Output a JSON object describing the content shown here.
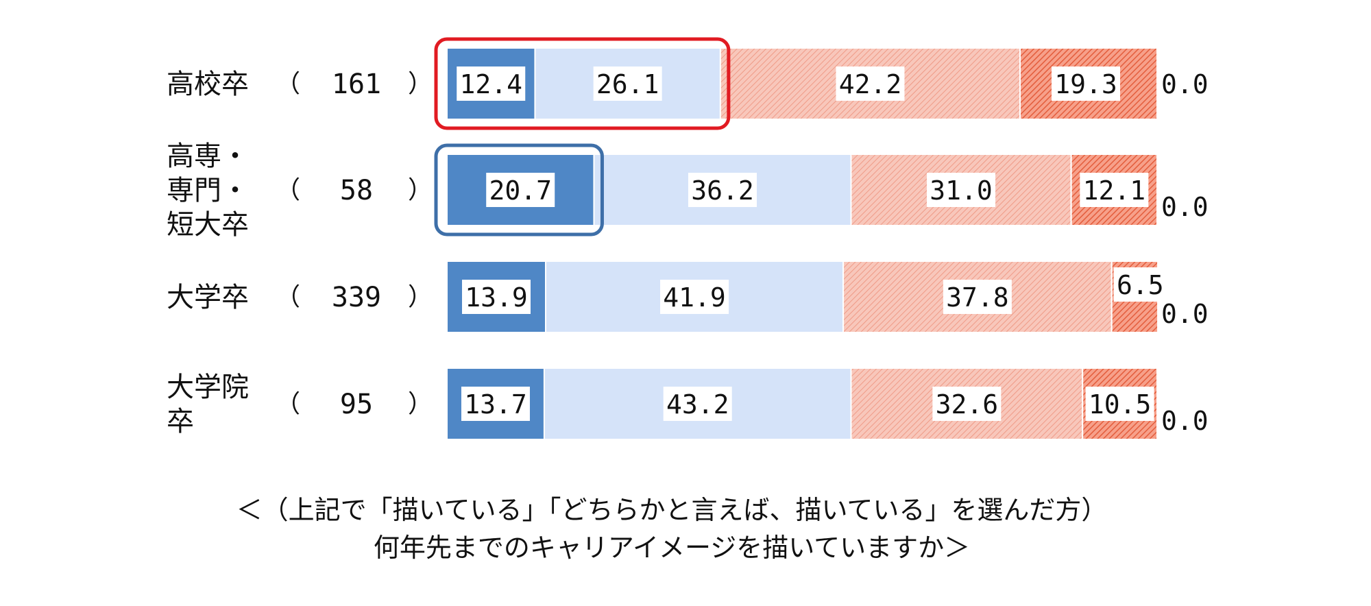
{
  "colors": {
    "strongly_draw": "#4f87c6",
    "somewhat_draw": "#d5e3f9",
    "somewhat_not": "#f5b4a5",
    "not_draw": "#ef7d5f",
    "no_answer": "#ffffff",
    "highlight_red": "#e11b22",
    "highlight_blue": "#3e6fa8",
    "value_label_bg": "#ffffff"
  },
  "chart_data": {
    "type": "bar",
    "orientation": "horizontal",
    "stacked": true,
    "xlim": [
      0,
      100
    ],
    "categories": [
      {
        "label_lines": [
          "高校卒"
        ],
        "count": "161"
      },
      {
        "label_lines": [
          "高専・",
          "専門・",
          "短大卒"
        ],
        "count": "58"
      },
      {
        "label_lines": [
          "大学卒"
        ],
        "count": "339"
      },
      {
        "label_lines": [
          "大学院",
          "卒"
        ],
        "count": "95"
      }
    ],
    "paren_open": "（",
    "paren_close": "）",
    "series": [
      {
        "key": "strongly_draw",
        "values": [
          12.4,
          20.7,
          13.9,
          13.7
        ],
        "labels": [
          "12.4",
          "20.7",
          "13.9",
          "13.7"
        ],
        "pattern": "solid"
      },
      {
        "key": "somewhat_draw",
        "values": [
          26.1,
          36.2,
          41.9,
          43.2
        ],
        "labels": [
          "26.1",
          "36.2",
          "41.9",
          "43.2"
        ],
        "pattern": "solid"
      },
      {
        "key": "somewhat_not",
        "values": [
          42.2,
          31.0,
          37.8,
          32.6
        ],
        "labels": [
          "42.2",
          "31.0",
          "37.8",
          "32.6"
        ],
        "pattern": "hatch"
      },
      {
        "key": "not_draw",
        "values": [
          19.3,
          12.1,
          6.5,
          10.5
        ],
        "labels": [
          "19.3",
          "12.1",
          "6.5",
          "10.5"
        ],
        "pattern": "hatch"
      },
      {
        "key": "no_answer",
        "values": [
          0.0,
          0.0,
          0.0,
          0.0
        ],
        "labels": [
          "0.0",
          "0.0",
          "0.0",
          "0.0"
        ],
        "pattern": "none"
      }
    ],
    "highlights": [
      {
        "row": 0,
        "segments": [
          0,
          1
        ],
        "color_key": "highlight_red"
      },
      {
        "row": 1,
        "segments": [
          0
        ],
        "color_key": "highlight_blue"
      }
    ],
    "caption_lines": [
      "＜（上記で「描いている」「どちらかと言えば、描いている」を選んだ方）",
      "何年先までのキャリアイメージを描いていますか＞"
    ]
  }
}
